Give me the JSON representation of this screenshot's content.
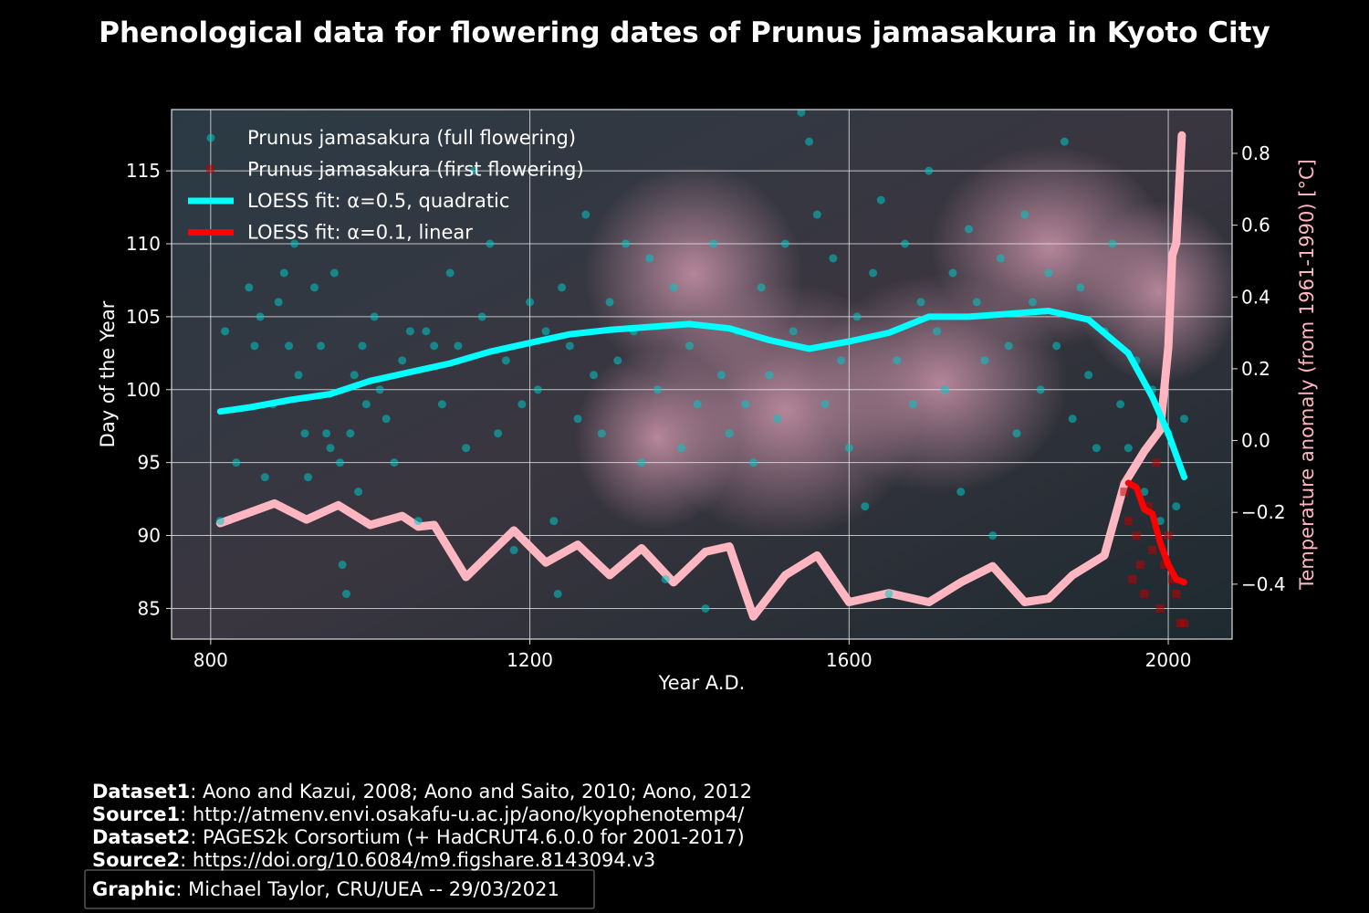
{
  "chart_data": {
    "type": "scatter",
    "title": "Phenological data for flowering dates of Prunus jamasakura in Kyoto City",
    "xlabel": "Year A.D.",
    "ylabel": "Day of the Year",
    "y2label": "Temperature anomaly (from 1961-1990) [°C]",
    "xlim": [
      751,
      2080
    ],
    "xticks": [
      800,
      1200,
      1600,
      2000
    ],
    "ylim": [
      82.9,
      119.2
    ],
    "yticks": [
      85,
      90,
      95,
      100,
      105,
      110,
      115
    ],
    "y2lim": [
      -0.553,
      0.922
    ],
    "y2ticks": [
      {
        "value": -0.4,
        "label": "−0.4"
      },
      {
        "value": -0.2,
        "label": "−0.2"
      },
      {
        "value": 0,
        "label": "0.0"
      },
      0.2,
      0.4,
      0.6,
      0.8
    ],
    "grid": true,
    "legend": "upper left",
    "series": [
      {
        "name": "Prunus jamasakura (full flowering)",
        "type": "scatter",
        "marker": "circle",
        "color": "#00c8c8",
        "x": [
          812,
          818,
          832,
          848,
          855,
          862,
          868,
          878,
          885,
          892,
          898,
          905,
          910,
          918,
          922,
          930,
          938,
          945,
          950,
          955,
          962,
          965,
          970,
          975,
          980,
          985,
          990,
          995,
          1005,
          1012,
          1020,
          1030,
          1040,
          1050,
          1060,
          1070,
          1080,
          1090,
          1100,
          1110,
          1120,
          1130,
          1140,
          1150,
          1160,
          1170,
          1180,
          1190,
          1200,
          1210,
          1220,
          1230,
          1235,
          1240,
          1250,
          1260,
          1270,
          1280,
          1290,
          1300,
          1310,
          1320,
          1330,
          1340,
          1350,
          1360,
          1370,
          1380,
          1390,
          1400,
          1410,
          1420,
          1430,
          1440,
          1450,
          1460,
          1470,
          1480,
          1490,
          1500,
          1510,
          1520,
          1530,
          1540,
          1550,
          1560,
          1570,
          1580,
          1590,
          1600,
          1610,
          1620,
          1630,
          1640,
          1650,
          1660,
          1670,
          1680,
          1690,
          1700,
          1710,
          1720,
          1730,
          1740,
          1750,
          1760,
          1770,
          1780,
          1790,
          1800,
          1810,
          1820,
          1830,
          1840,
          1850,
          1860,
          1870,
          1880,
          1890,
          1900,
          1910,
          1920,
          1930,
          1940,
          1950,
          1960,
          1970,
          1980,
          1990,
          2000,
          2010,
          2020
        ],
        "values": [
          91,
          104,
          95,
          107,
          103,
          105,
          94,
          99,
          106,
          108,
          103,
          110,
          101,
          97,
          94,
          107,
          103,
          97,
          96,
          108,
          95,
          88,
          86,
          97,
          101,
          93,
          103,
          99,
          105,
          100,
          98,
          95,
          102,
          104,
          91,
          104,
          103,
          99,
          108,
          103,
          96,
          115,
          105,
          110,
          97,
          102,
          89,
          99,
          106,
          100,
          104,
          91,
          86,
          107,
          103,
          98,
          112,
          101,
          97,
          106,
          102,
          110,
          104,
          95,
          109,
          100,
          87,
          107,
          96,
          103,
          99,
          85,
          110,
          101,
          97,
          104,
          99,
          95,
          107,
          101,
          98,
          110,
          104,
          119,
          117,
          112,
          99,
          109,
          102,
          96,
          105,
          92,
          108,
          113,
          86,
          102,
          110,
          99,
          106,
          115,
          104,
          100,
          108,
          93,
          111,
          106,
          102,
          90,
          109,
          103,
          97,
          112,
          106,
          100,
          108,
          103,
          117,
          98,
          107,
          101,
          96,
          104,
          110,
          99,
          96,
          102,
          93,
          100,
          91,
          97,
          92,
          98
        ]
      },
      {
        "name": "Prunus jamasakura (first flowering)",
        "type": "scatter",
        "marker": "square",
        "color": "#c00000",
        "x": [
          1945,
          1950,
          1955,
          1960,
          1965,
          1970,
          1975,
          1980,
          1985,
          1990,
          1995,
          2000,
          2005,
          2010,
          2015,
          2020
        ],
        "values": [
          93,
          91,
          87,
          90,
          88,
          86,
          92,
          89,
          95,
          85,
          88,
          90,
          87,
          86,
          84,
          84
        ]
      },
      {
        "name": "LOESS fit: α=0.5, quadratic",
        "type": "line",
        "color": "#00ffff",
        "width": 7,
        "x": [
          812,
          850,
          900,
          950,
          1000,
          1050,
          1100,
          1150,
          1200,
          1250,
          1300,
          1350,
          1400,
          1450,
          1500,
          1550,
          1600,
          1650,
          1700,
          1750,
          1800,
          1850,
          1900,
          1950,
          1980,
          2000,
          2020
        ],
        "values": [
          98.5,
          98.8,
          99.3,
          99.7,
          100.6,
          101.2,
          101.8,
          102.6,
          103.2,
          103.8,
          104.1,
          104.3,
          104.5,
          104.2,
          103.4,
          102.8,
          103.3,
          103.9,
          105.0,
          105.0,
          105.2,
          105.4,
          104.8,
          102.5,
          99.5,
          97,
          94
        ]
      },
      {
        "name": "LOESS fit: α=0.1, linear",
        "type": "line",
        "color": "#ff0000",
        "width": 7,
        "x": [
          1950,
          1960,
          1970,
          1980,
          1990,
          2000,
          2010,
          2020
        ],
        "values": [
          93.6,
          93.3,
          91.8,
          91.5,
          89.5,
          88,
          87,
          86.8
        ]
      },
      {
        "type": "line",
        "axis": "y2",
        "color": "#ffb6c1",
        "width": 9,
        "x": [
          812,
          880,
          920,
          960,
          1000,
          1040,
          1060,
          1080,
          1120,
          1180,
          1220,
          1260,
          1300,
          1340,
          1380,
          1420,
          1450,
          1480,
          1520,
          1560,
          1600,
          1650,
          1700,
          1740,
          1780,
          1820,
          1850,
          1880,
          1920,
          1945,
          1970,
          1990,
          2000,
          2005,
          2010,
          2017
        ],
        "values": [
          -0.23,
          -0.175,
          -0.22,
          -0.18,
          -0.235,
          -0.21,
          -0.24,
          -0.235,
          -0.38,
          -0.25,
          -0.34,
          -0.29,
          -0.375,
          -0.3,
          -0.395,
          -0.31,
          -0.295,
          -0.49,
          -0.375,
          -0.32,
          -0.45,
          -0.425,
          -0.45,
          -0.395,
          -0.35,
          -0.45,
          -0.44,
          -0.375,
          -0.32,
          -0.12,
          -0.03,
          0.03,
          0.26,
          0.515,
          0.55,
          0.85
        ]
      }
    ]
  },
  "footer": {
    "lines": [
      {
        "label": "Dataset1",
        "text": ": Aono and Kazui, 2008; Aono and Saito, 2010; Aono, 2012"
      },
      {
        "label": "Source1",
        "text": ": http://atmenv.envi.osakafu-u.ac.jp/aono/kyophenotemp4/"
      },
      {
        "label": "Dataset2",
        "text": ": PAGES2k Corsortium (+ HadCRUT4.6.0.0 for 2001-2017)"
      },
      {
        "label": "Source2",
        "text": ": https://doi.org/10.6084/m9.figshare.8143094.v3"
      },
      {
        "label": "Graphic",
        "text": ": Michael Taylor, CRU/UEA -- 29/03/2021"
      }
    ]
  }
}
